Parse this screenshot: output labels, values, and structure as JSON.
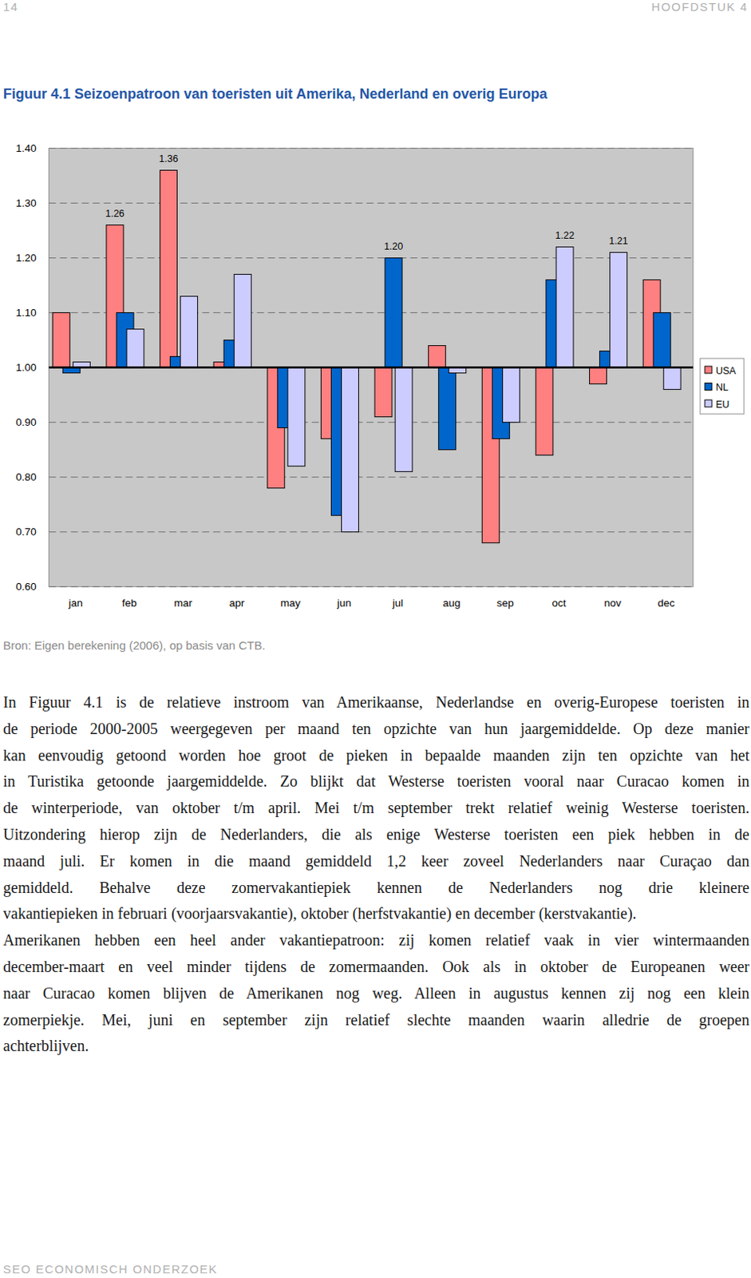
{
  "header": {
    "page_number": "14",
    "chapter": "HOOFDSTUK 4"
  },
  "chart_data": {
    "type": "bar",
    "title": "Figuur 4.1 Seizoenpatroon van toeristen uit Amerika, Nederland en overig Europa",
    "categories": [
      "jan",
      "feb",
      "mar",
      "apr",
      "may",
      "jun",
      "jul",
      "aug",
      "sep",
      "oct",
      "nov",
      "dec"
    ],
    "series": [
      {
        "name": "USA",
        "color": "#ff8080",
        "values": [
          1.1,
          1.26,
          1.36,
          1.01,
          0.78,
          0.87,
          0.91,
          1.04,
          0.68,
          0.84,
          0.97,
          1.16
        ],
        "value_labels": [
          null,
          "1.26",
          "1.36",
          null,
          null,
          null,
          null,
          null,
          null,
          null,
          null,
          null
        ]
      },
      {
        "name": "NL",
        "color": "#0066cc",
        "values": [
          0.99,
          1.1,
          1.02,
          1.05,
          0.89,
          0.73,
          1.2,
          0.85,
          0.87,
          1.16,
          1.03,
          1.1
        ],
        "value_labels": [
          null,
          null,
          null,
          null,
          null,
          null,
          "1.20",
          null,
          null,
          null,
          null,
          null
        ]
      },
      {
        "name": "EU",
        "color": "#ccccff",
        "values": [
          1.01,
          1.07,
          1.13,
          1.17,
          0.82,
          0.7,
          0.81,
          0.99,
          0.9,
          1.22,
          1.21,
          0.96
        ],
        "value_labels": [
          null,
          null,
          null,
          null,
          null,
          null,
          null,
          null,
          null,
          "1.22",
          "1.21",
          null
        ]
      }
    ],
    "ylim": [
      0.6,
      1.4
    ],
    "yticks": [
      {
        "value": 0.6,
        "label": "0.60"
      },
      {
        "value": 0.7,
        "label": "0.70"
      },
      {
        "value": 0.8,
        "label": "0.80"
      },
      {
        "value": 0.9,
        "label": "0.90"
      },
      {
        "value": 1.0,
        "label": "1.00"
      },
      {
        "value": 1.1,
        "label": "1.10"
      },
      {
        "value": 1.2,
        "label": "1.20"
      },
      {
        "value": 1.3,
        "label": "1.30"
      },
      {
        "value": 1.4,
        "label": "1.40"
      }
    ],
    "baseline": 1,
    "grid": true,
    "legend": "right",
    "data_labels": true
  },
  "source": "Bron: Eigen berekening (2006), op basis van CTB.",
  "body": {
    "paragraphs": [
      {
        "lines": [
          "In Figuur 4.1 is de relatieve instroom van Amerikaanse, Nederlandse en overig-Europese toeristen in",
          "de periode 2000-2005 weergegeven per maand ten opzichte van hun jaargemiddelde. Op deze manier",
          "kan eenvoudig getoond worden hoe groot de pieken in bepaalde maanden zijn ten opzichte van het",
          "in Turistika getoonde jaargemiddelde. Zo blijkt dat Westerse toeristen vooral naar Curacao komen in",
          "de winterperiode, van oktober t/m april. Mei t/m september trekt relatief weinig Westerse toeristen.",
          "Uitzondering hierop zijn de Nederlanders, die als enige Westerse toeristen een piek hebben in de",
          "maand juli. Er komen in die maand gemiddeld 1,2 keer zoveel Nederlanders naar Curaçao dan",
          "gemiddeld. Behalve deze zomervakantiepiek kennen de Nederlanders nog drie kleinere",
          "vakantiepieken in februari (voorjaarsvakantie), oktober (herfstvakantie) en december (kerstvakantie)."
        ]
      },
      {
        "lines": [
          "Amerikanen hebben een heel ander vakantiepatroon: zij komen relatief vaak in vier wintermaanden",
          "december-maart en veel minder tijdens de zomermaanden. Ook als in oktober de Europeanen weer",
          "naar Curacao komen blijven de Amerikanen nog weg. Alleen in augustus kennen zij nog een klein",
          "zomerpiekje. Mei, juni en september zijn relatief slechte maanden waarin alledrie de groepen",
          "achterblijven."
        ]
      }
    ]
  },
  "footer": {
    "text": "SEO ECONOMISCH ONDERZOEK"
  }
}
